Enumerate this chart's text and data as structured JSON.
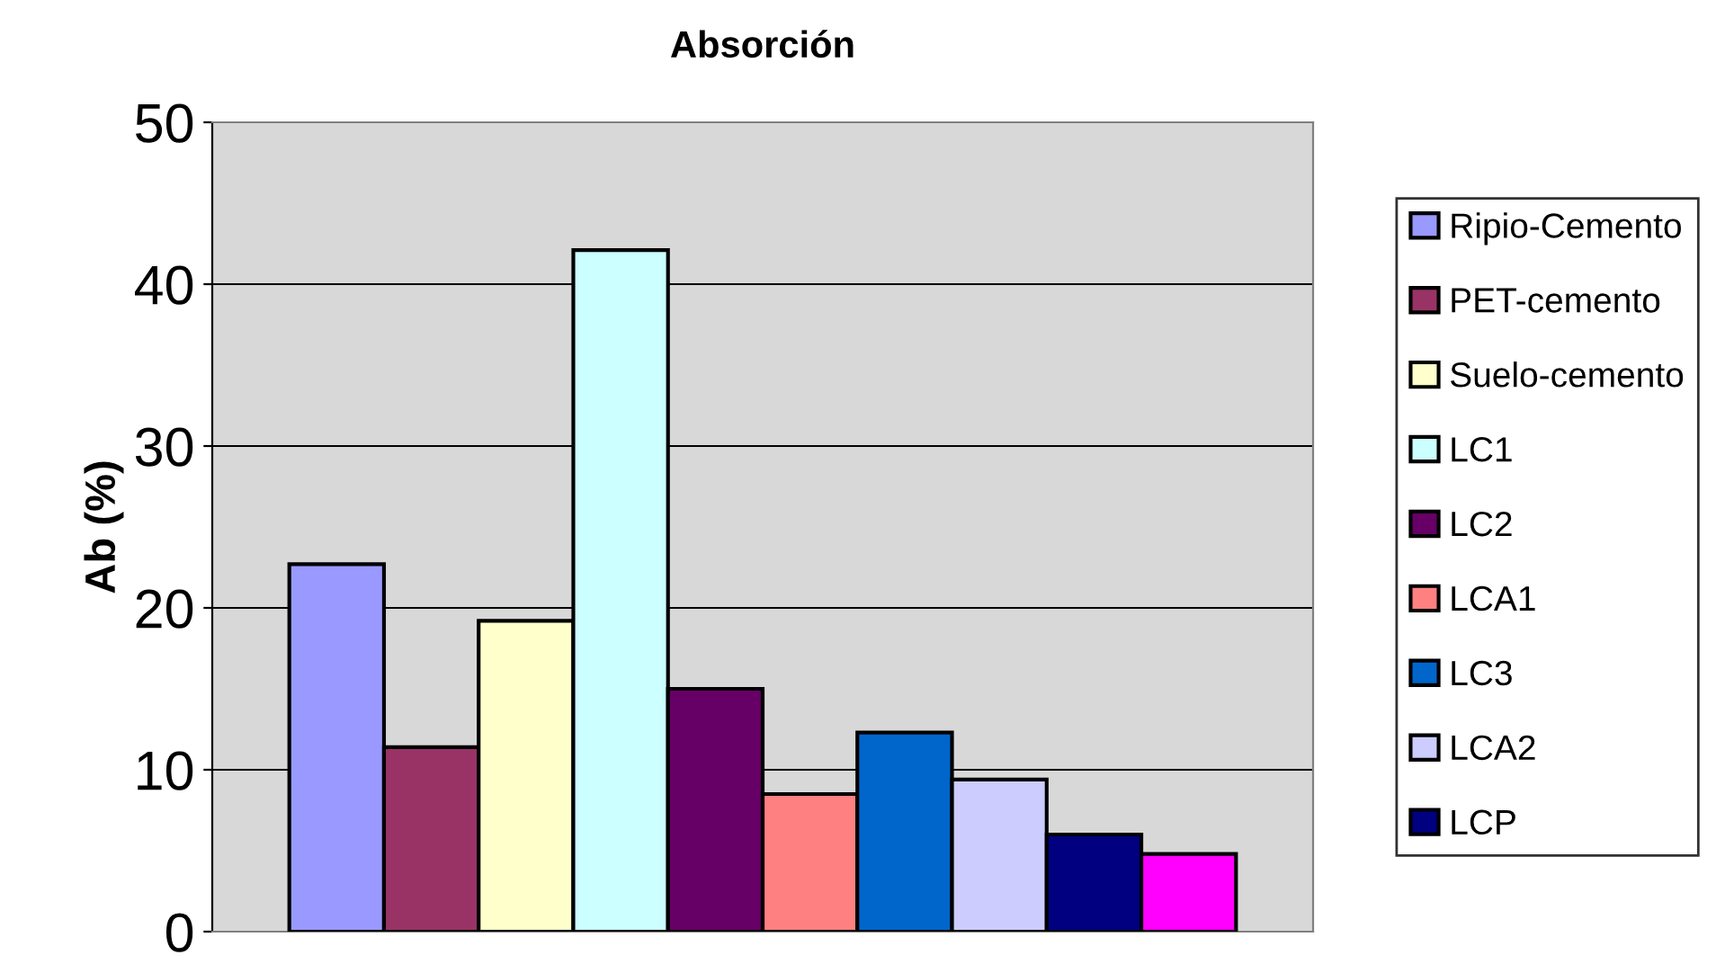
{
  "chart_data": {
    "type": "bar",
    "title": "Absorción",
    "ylabel": "Ab (%)",
    "categories": [
      null
    ],
    "series": [
      {
        "name": "Ripio-Cemento",
        "color": "#9999ff",
        "values": [
          22.7
        ]
      },
      {
        "name": "PET-cemento",
        "color": "#993366",
        "values": [
          11.4
        ]
      },
      {
        "name": "Suelo-cemento",
        "color": "#ffffcc",
        "values": [
          19.2
        ]
      },
      {
        "name": "LC1",
        "color": "#ccffff",
        "values": [
          42.1
        ]
      },
      {
        "name": "LC2",
        "color": "#660066",
        "values": [
          15.0
        ]
      },
      {
        "name": "LCA1",
        "color": "#ff8080",
        "values": [
          8.5
        ]
      },
      {
        "name": "LC3",
        "color": "#0066cc",
        "values": [
          12.3
        ]
      },
      {
        "name": "LCA2",
        "color": "#ccccff",
        "values": [
          9.4
        ]
      },
      {
        "name": "LCP",
        "color": "#000080",
        "values": [
          6.0
        ]
      },
      {
        "color": "#ff00ff",
        "values": [
          4.8
        ]
      }
    ],
    "ylim": [
      0,
      50
    ],
    "yticks": [
      0,
      10,
      20,
      30,
      40,
      50
    ],
    "grid": "y",
    "legend": "right"
  }
}
